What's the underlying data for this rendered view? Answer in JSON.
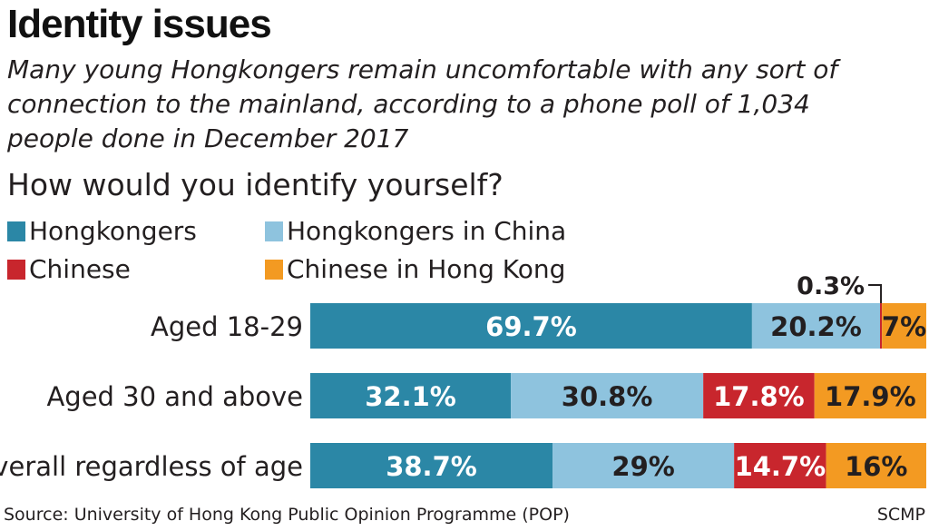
{
  "title": "Identity issues",
  "subtitle": "Many young Hongkongers remain uncomfortable with any sort of connection to the mainland, according to a phone poll of 1,034 people done in December 2017",
  "source": "Source: University of Hong Kong Public Opinion Programme (POP)",
  "credit": "SCMP",
  "colors": {
    "Hongkongers": "#2b87a6",
    "Hongkongers in China": "#8ec3de",
    "Chinese": "#c8262d",
    "Chinese in Hong Kong": "#f39a22"
  },
  "chart_data": {
    "type": "bar",
    "orientation": "horizontal",
    "stacked": true,
    "title": "How would you identify yourself?",
    "legend_placement": "top",
    "grid": false,
    "xlim": [
      0,
      100
    ],
    "categories": [
      "Aged 18-29",
      "Aged 30 and above",
      "Overall regardless of age"
    ],
    "series": [
      {
        "name": "Hongkongers",
        "values": [
          69.7,
          32.1,
          38.7
        ],
        "labels": [
          "69.7%",
          "32.1%",
          "38.7%"
        ]
      },
      {
        "name": "Hongkongers in China",
        "values": [
          20.2,
          30.8,
          29
        ],
        "labels": [
          "20.2%",
          "30.8%",
          "29%"
        ]
      },
      {
        "name": "Chinese",
        "values": [
          0.3,
          17.8,
          14.7
        ],
        "labels": [
          "0.3%",
          "17.8%",
          "14.7%"
        ]
      },
      {
        "name": "Chinese in Hong Kong",
        "values": [
          7,
          17.9,
          16
        ],
        "labels": [
          "7%",
          "17.9%",
          "16%"
        ]
      }
    ]
  }
}
